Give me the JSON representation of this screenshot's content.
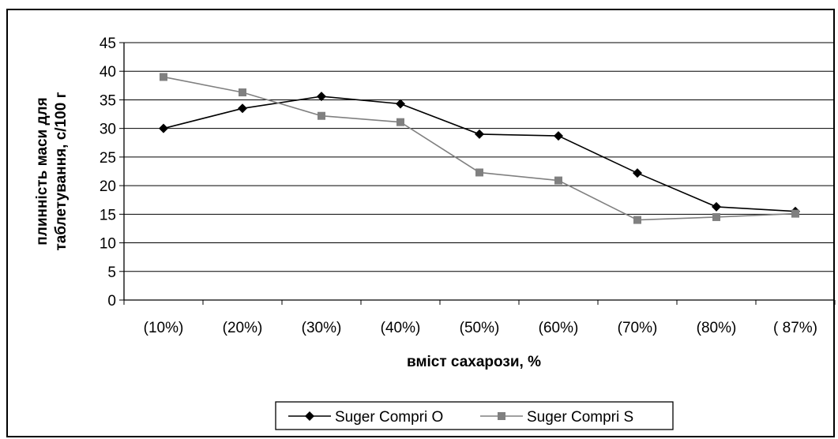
{
  "chart_data": {
    "type": "line",
    "categories": [
      "(10%)",
      "(20%)",
      "(30%)",
      "(40%)",
      "(50%)",
      "(60%)",
      "(70%)",
      "(80%)",
      "( 87%)"
    ],
    "series": [
      {
        "name": "Suger Compri O",
        "values": [
          30.0,
          33.5,
          35.6,
          34.3,
          29.0,
          28.7,
          22.2,
          16.3,
          15.5
        ],
        "color": "#000000",
        "marker": "diamond"
      },
      {
        "name": "Suger Compri S",
        "values": [
          39.0,
          36.3,
          32.2,
          31.1,
          22.3,
          20.9,
          14.0,
          14.5,
          15.1
        ],
        "color": "#808080",
        "marker": "square"
      }
    ],
    "title": "",
    "xlabel": "вміст сахарози, %",
    "ylabel_lines": [
      "плинність маси для",
      "таблетування, с/100 г"
    ],
    "ylim": [
      0,
      45
    ],
    "yticks": [
      0,
      5,
      10,
      15,
      20,
      25,
      30,
      35,
      40,
      45
    ],
    "grid": true,
    "legend_position": "bottom"
  }
}
